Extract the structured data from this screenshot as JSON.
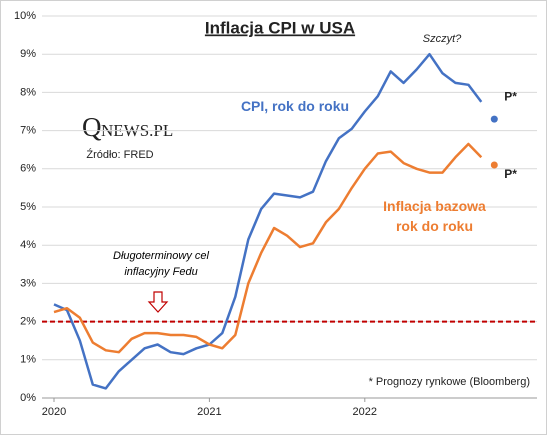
{
  "chart_data": {
    "type": "line",
    "title": "Inflacja CPI w USA",
    "categories": [
      "2020",
      null,
      null,
      null,
      null,
      null,
      null,
      null,
      null,
      null,
      null,
      null,
      "2021",
      null,
      null,
      null,
      null,
      null,
      null,
      null,
      null,
      null,
      null,
      null,
      "2022",
      null,
      null,
      null,
      null,
      null,
      null,
      null,
      null,
      null,
      null
    ],
    "series": [
      {
        "name": "CPI, rok do roku",
        "color": "#4472c4",
        "values": [
          2.45,
          2.3,
          1.5,
          0.35,
          0.25,
          0.7,
          1.0,
          1.3,
          1.4,
          1.2,
          1.15,
          1.3,
          1.4,
          1.7,
          2.65,
          4.15,
          4.95,
          5.35,
          5.3,
          5.25,
          5.4,
          6.2,
          6.8,
          7.05,
          7.5,
          7.9,
          8.55,
          8.25,
          8.6,
          9.0,
          8.5,
          8.25,
          8.2,
          7.75,
          null
        ]
      },
      {
        "name": "Inflacja bazowa rok do roku",
        "color": "#ed7d31",
        "values": [
          2.25,
          2.35,
          2.1,
          1.45,
          1.25,
          1.2,
          1.55,
          1.7,
          1.7,
          1.65,
          1.65,
          1.6,
          1.4,
          1.3,
          1.65,
          3.0,
          3.8,
          4.45,
          4.25,
          3.95,
          4.05,
          4.6,
          4.95,
          5.5,
          6.0,
          6.4,
          6.45,
          6.15,
          6.0,
          5.9,
          5.9,
          6.3,
          6.65,
          6.3,
          null
        ]
      },
      {
        "name": "P*",
        "color": "#4472c4",
        "values": [
          null,
          null,
          null,
          null,
          null,
          null,
          null,
          null,
          null,
          null,
          null,
          null,
          null,
          null,
          null,
          null,
          null,
          null,
          null,
          null,
          null,
          null,
          null,
          null,
          null,
          null,
          null,
          null,
          null,
          null,
          null,
          null,
          null,
          null,
          7.3
        ]
      },
      {
        "name": "P*",
        "color": "#ed7d31",
        "values": [
          null,
          null,
          null,
          null,
          null,
          null,
          null,
          null,
          null,
          null,
          null,
          null,
          null,
          null,
          null,
          null,
          null,
          null,
          null,
          null,
          null,
          null,
          null,
          null,
          null,
          null,
          null,
          null,
          null,
          null,
          null,
          null,
          null,
          null,
          6.1
        ]
      }
    ],
    "ylim": [
      0,
      10
    ],
    "yticks": [
      {
        "value": 0,
        "label": "0%"
      },
      {
        "value": 1,
        "label": "1%"
      },
      {
        "value": 2,
        "label": "2%"
      },
      {
        "value": 3,
        "label": "3%"
      },
      {
        "value": 4,
        "label": "4%"
      },
      {
        "value": 5,
        "label": "5%"
      },
      {
        "value": 6,
        "label": "6%"
      },
      {
        "value": 7,
        "label": "7%"
      },
      {
        "value": 8,
        "label": "8%"
      },
      {
        "value": 9,
        "label": "9%"
      },
      {
        "value": 10,
        "label": "10%"
      }
    ],
    "grid": true,
    "target": {
      "value": 2,
      "color": "#c00000",
      "label": "Długoterminowy cel inflacyjny Fedu"
    },
    "annotations": {
      "peak": "Szczyt?",
      "footnote": "* Prognozy rynkowe (Bloomberg)"
    },
    "logo": {
      "initial": "Q",
      "rest": "NEWS.PL",
      "source": "Źródło: FRED"
    }
  }
}
